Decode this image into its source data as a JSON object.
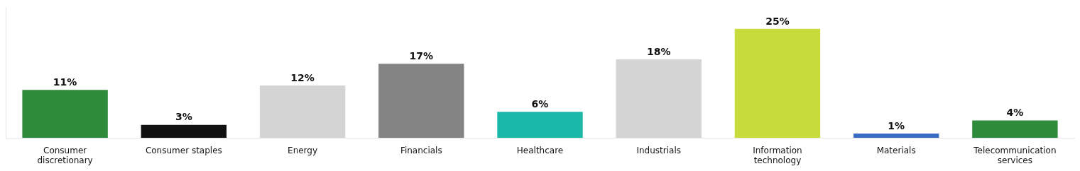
{
  "chart_data": {
    "type": "bar",
    "categories": [
      "Consumer\ndiscretionary",
      "Consumer staples",
      "Energy",
      "Financials",
      "Healthcare",
      "Industrials",
      "Information\ntechnology",
      "Materials",
      "Telecommunication\nservices"
    ],
    "values": [
      11,
      3,
      12,
      17,
      6,
      18,
      25,
      1,
      4
    ],
    "value_labels": [
      "11%",
      "3%",
      "12%",
      "17%",
      "6%",
      "18%",
      "25%",
      "1%",
      "4%"
    ],
    "colors": [
      "#2e8b3a",
      "#111111",
      "#d4d4d4",
      "#848484",
      "#1ab8a8",
      "#d4d4d4",
      "#c8dc3c",
      "#3b6cc4",
      "#2e8b3a"
    ],
    "ylim": [
      0,
      30
    ],
    "data_labels": true,
    "tick_labels": "x",
    "grid": false
  }
}
